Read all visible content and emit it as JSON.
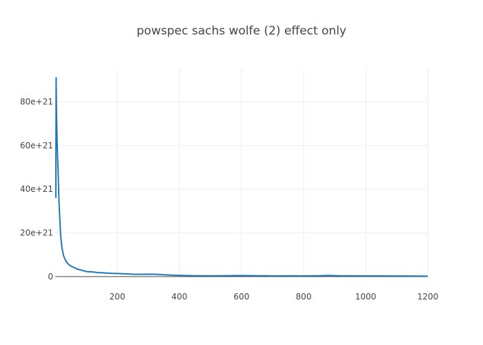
{
  "chart_data": {
    "type": "line",
    "title": "powspec sachs  wolfe (2) effect only",
    "xlabel": "",
    "ylabel": "",
    "xlim": [
      0,
      1200
    ],
    "ylim": [
      -1e+21,
      9.5e+22
    ],
    "xticks": [
      200,
      400,
      600,
      800,
      1000,
      1200
    ],
    "xtick_labels": [
      "200",
      "400",
      "600",
      "800",
      "1000",
      "1200"
    ],
    "yticks": [
      0,
      2e+22,
      4e+22,
      6e+22,
      8e+22
    ],
    "ytick_labels": [
      "0",
      "20e+21",
      "40e+21",
      "60e+21",
      "80e+21"
    ],
    "grid": true,
    "series": [
      {
        "color": "#1f77b4",
        "x": [
          2,
          3,
          4,
          5,
          6,
          8,
          10,
          12,
          15,
          18,
          22,
          27,
          33,
          40,
          50,
          60,
          70,
          80,
          100,
          120,
          140,
          160,
          180,
          200,
          230,
          260,
          290,
          320,
          350,
          380,
          410,
          450,
          500,
          550,
          600,
          650,
          700,
          750,
          800,
          850,
          880,
          920,
          1000,
          1050,
          1100,
          1200
        ],
        "y": [
          3.6e+22,
          9.1e+22,
          7.7e+22,
          6.9e+22,
          6.3e+22,
          5.4e+22,
          4.5e+22,
          3.5e+22,
          2.6e+22,
          1.8e+22,
          1.3e+22,
          9.5e+21,
          7.5e+21,
          6e+21,
          4.8e+21,
          4.2e+21,
          3.5e+21,
          3.1e+21,
          2.3e+21,
          2.1e+21,
          1.8e+21,
          1.7e+21,
          1.5e+21,
          1.4e+21,
          1.2e+21,
          1e+21,
          1.1e+21,
          1.05e+21,
          8e+20,
          6e+20,
          5e+20,
          4e+20,
          3.5e+20,
          4e+20,
          4.5e+20,
          4e+20,
          3e+20,
          3.5e+20,
          3e+20,
          4e+20,
          5e+20,
          3.5e+20,
          3e+20,
          3e+20,
          2.5e+20,
          2e+20
        ]
      }
    ]
  }
}
